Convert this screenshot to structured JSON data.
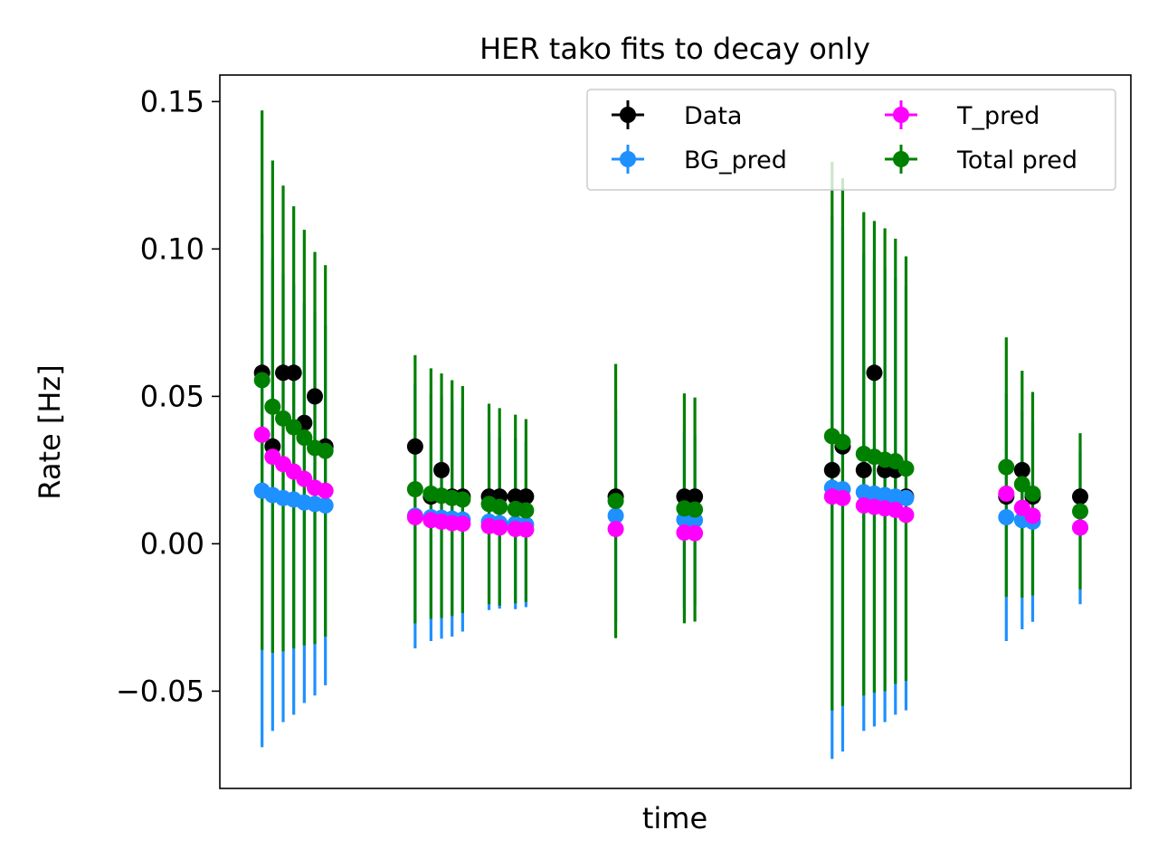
{
  "chart_data": {
    "type": "scatter",
    "title": "HER tako fits to decay only",
    "xlabel": "time",
    "ylabel": "Rate [Hz]",
    "ylim": [
      -0.083,
      0.159
    ],
    "xlim": [
      -4.0,
      82.3
    ],
    "x_ticks_shown": false,
    "y_ticks": [
      -0.05,
      0.0,
      0.05,
      0.1,
      0.15
    ],
    "y_tick_labels": [
      "−0.05",
      "0.00",
      "0.05",
      "0.10",
      "0.15"
    ],
    "grid": false,
    "legend_position": "top-right",
    "legend_columns": 2,
    "x": [
      0,
      1,
      2,
      3,
      4,
      5,
      6,
      14.5,
      16,
      17,
      18,
      19,
      21.5,
      22.5,
      24,
      25,
      33.5,
      40,
      41,
      54,
      55,
      57,
      58,
      59,
      60,
      61,
      70.5,
      72,
      73,
      77.5
    ],
    "series": [
      {
        "name": "Data",
        "color": "#000000",
        "values": [
          0.058,
          0.033,
          0.058,
          0.058,
          0.041,
          0.05,
          0.033,
          0.033,
          0.016,
          0.025,
          0.016,
          0.016,
          0.016,
          0.016,
          0.016,
          0.016,
          0.016,
          0.016,
          0.016,
          0.025,
          0.033,
          0.025,
          0.058,
          0.025,
          0.025,
          0.016,
          0.016,
          0.025,
          0.016,
          0.016
        ],
        "err": [
          0.0,
          0.0,
          0.0,
          0.0,
          0.0,
          0.0,
          0.0,
          0.0,
          0.0,
          0.0,
          0.0,
          0.0,
          0.0,
          0.0,
          0.0,
          0.0,
          0.0,
          0.0,
          0.0,
          0.0,
          0.0,
          0.0,
          0.0,
          0.0,
          0.0,
          0.0,
          0.0,
          0.0,
          0.0,
          0.0
        ]
      },
      {
        "name": "BG_pred",
        "color": "#1e90ff",
        "values": [
          0.018,
          0.0165,
          0.0155,
          0.015,
          0.014,
          0.0135,
          0.013,
          0.0095,
          0.009,
          0.0088,
          0.0085,
          0.0082,
          0.0075,
          0.007,
          0.0068,
          0.0065,
          0.0095,
          0.0082,
          0.008,
          0.019,
          0.0185,
          0.0175,
          0.017,
          0.0165,
          0.016,
          0.0155,
          0.009,
          0.008,
          0.0075,
          0.0055
        ],
        "err": [
          0.087,
          0.08,
          0.076,
          0.073,
          0.068,
          0.065,
          0.061,
          0.045,
          0.042,
          0.041,
          0.04,
          0.038,
          0.03,
          0.029,
          0.029,
          0.028,
          0.036,
          0.03,
          0.029,
          0.092,
          0.089,
          0.081,
          0.079,
          0.077,
          0.074,
          0.072,
          0.042,
          0.037,
          0.034,
          0.026
        ]
      },
      {
        "name": "T_pred",
        "color": "#ff00ff",
        "values": [
          0.037,
          0.0295,
          0.027,
          0.0245,
          0.022,
          0.019,
          0.018,
          0.009,
          0.008,
          0.0075,
          0.007,
          0.0068,
          0.006,
          0.0055,
          0.005,
          0.0048,
          0.005,
          0.0038,
          0.0036,
          0.016,
          0.0155,
          0.013,
          0.0125,
          0.012,
          0.0115,
          0.0098,
          0.017,
          0.0122,
          0.0095,
          0.0055
        ]
      },
      {
        "name": "Total pred",
        "color": "#008000",
        "values": [
          0.0555,
          0.0465,
          0.0425,
          0.0395,
          0.036,
          0.0325,
          0.0315,
          0.0185,
          0.017,
          0.0163,
          0.0155,
          0.015,
          0.0135,
          0.0125,
          0.0118,
          0.0113,
          0.0145,
          0.012,
          0.0116,
          0.0365,
          0.0345,
          0.0305,
          0.0295,
          0.0285,
          0.028,
          0.0255,
          0.026,
          0.0202,
          0.017,
          0.011
        ],
        "err": [
          0.0915,
          0.0835,
          0.079,
          0.075,
          0.0705,
          0.0665,
          0.063,
          0.0455,
          0.0425,
          0.0415,
          0.04,
          0.0385,
          0.034,
          0.0335,
          0.032,
          0.031,
          0.0465,
          0.039,
          0.038,
          0.093,
          0.0895,
          0.082,
          0.08,
          0.0785,
          0.0755,
          0.072,
          0.044,
          0.0385,
          0.0345,
          0.0265
        ]
      }
    ]
  }
}
